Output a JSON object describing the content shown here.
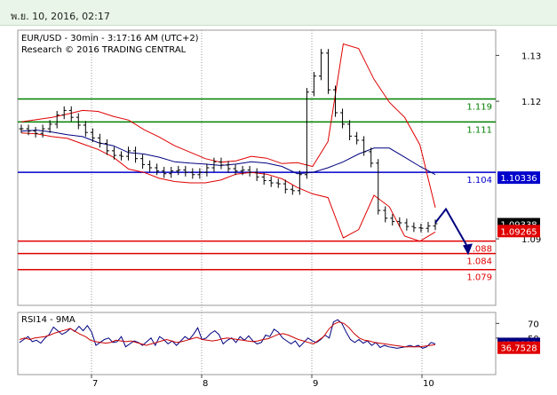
{
  "header": {
    "date": "พ.ย. 10, 2016, 02:17"
  },
  "chart_data": [
    {
      "type": "line",
      "title": "EUR/USD - 30min - 3:17:16 AM (UTC+2)",
      "subtitle": "Research © 2016 TRADING CENTRAL",
      "ylim": [
        1.0755,
        1.1355
      ],
      "y_ticks": [
        "1.13",
        "1.12",
        "1.09"
      ],
      "x_ticks": [
        "7",
        "8",
        "9",
        "10"
      ],
      "levels": [
        {
          "label": "1.119",
          "value": 1.1205,
          "color": "#008000"
        },
        {
          "label": "1.111",
          "value": 1.1155,
          "color": "#008000"
        },
        {
          "label": "1.104",
          "value": 1.1045,
          "color": "#0000cc"
        },
        {
          "label": ".088",
          "value": 1.0895,
          "color": "#e00000"
        },
        {
          "label": "1.084",
          "value": 1.0868,
          "color": "#e00000"
        },
        {
          "label": "1.079",
          "value": 1.0833,
          "color": "#e00000"
        }
      ],
      "price_tags": [
        {
          "label": "1.10336",
          "value": 1.10335,
          "bg": "#0000cc",
          "fg": "#ffffff"
        },
        {
          "label": "1.09338",
          "value": 1.0932,
          "bg": "#000000",
          "fg": "#ffffff"
        },
        {
          "label": "1.09265",
          "value": 1.0917,
          "bg": "#e00000",
          "fg": "#ffffff"
        }
      ],
      "series": [
        {
          "style": "ohlc bars",
          "color": "#000000",
          "values": [
            1.114,
            1.1135,
            1.113,
            1.114,
            1.115,
            1.117,
            1.118,
            1.1165,
            1.1148,
            1.1132,
            1.112,
            1.1108,
            1.1092,
            1.1082,
            1.108,
            1.1092,
            1.1075,
            1.1062,
            1.1055,
            1.1048,
            1.1042,
            1.1048,
            1.105,
            1.1045,
            1.104,
            1.1045,
            1.1055,
            1.1068,
            1.1061,
            1.1053,
            1.1048,
            1.105,
            1.1045,
            1.1035,
            1.1027,
            1.1022,
            1.102,
            1.1008,
            1.1005,
            1.104,
            1.122,
            1.1255,
            1.1305,
            1.1225,
            1.1175,
            1.115,
            1.1124,
            1.1115,
            1.109,
            1.1065,
            1.0962,
            1.0945,
            1.0938,
            1.0935,
            1.0927,
            1.0924,
            1.0923,
            1.0928,
            1.0933
          ]
        },
        {
          "name": "",
          "style": "line",
          "color": "#000080",
          "values": [
            1.1135,
            1.1137,
            1.1133,
            1.1127,
            1.1123,
            1.111,
            1.1103,
            1.1088,
            1.1085,
            1.1078,
            1.1068,
            1.1065,
            1.1063,
            1.106,
            1.1063,
            1.1068,
            1.1065,
            1.1058,
            1.1042,
            1.1045,
            1.1055,
            1.1068,
            1.1085,
            1.1098,
            1.1098,
            1.1078,
            1.1058,
            1.104
          ]
        }
      ],
      "band_upper": [
        1.1155,
        1.116,
        1.1165,
        1.1172,
        1.118,
        1.1178,
        1.1167,
        1.1159,
        1.1138,
        1.1122,
        1.1103,
        1.1089,
        1.1075,
        1.1067,
        1.107,
        1.108,
        1.1076,
        1.1064,
        1.1066,
        1.1058,
        1.1112,
        1.1325,
        1.1315,
        1.1248,
        1.1198,
        1.1165,
        1.1105,
        1.0968
      ],
      "band_lower": [
        1.1131,
        1.1129,
        1.1123,
        1.1119,
        1.1107,
        1.1095,
        1.1078,
        1.1052,
        1.1045,
        1.1032,
        1.1025,
        1.1022,
        1.1022,
        1.1028,
        1.1041,
        1.1045,
        1.1041,
        1.1031,
        1.1012,
        1.0998,
        1.099,
        1.0902,
        1.092,
        1.0995,
        1.097,
        1.0906,
        1.0895,
        1.0915
      ],
      "forecast": [
        1.0935,
        1.0965,
        1.088
      ]
    },
    {
      "type": "line",
      "title": "RSI14 - 9MA",
      "ylim": [
        0,
        85
      ],
      "y_ticks": [
        "70",
        "50"
      ],
      "value_tags": [
        {
          "label": "41.9911",
          "value": 42,
          "bg": "#000080",
          "fg": "#ffffff"
        },
        {
          "label": "36.7528",
          "value": 36.75,
          "bg": "#e00000",
          "fg": "#ffffff"
        }
      ],
      "series": [
        {
          "name": "",
          "color": "#000080",
          "values": [
            44,
            48,
            52,
            45,
            47,
            43,
            50,
            55,
            65,
            60,
            55,
            58,
            63,
            59,
            66,
            60,
            67,
            58,
            40,
            44,
            48,
            50,
            44,
            45,
            52,
            38,
            42,
            46,
            44,
            40,
            45,
            50,
            40,
            52,
            48,
            42,
            46,
            40,
            46,
            52,
            48,
            55,
            64,
            48,
            50,
            56,
            60,
            55,
            42,
            47,
            50,
            44,
            52,
            47,
            53,
            46,
            42,
            44,
            54,
            52,
            62,
            58,
            50,
            46,
            42,
            46,
            38,
            44,
            50,
            46,
            44,
            48,
            54,
            50,
            72,
            75,
            70,
            58,
            48,
            44,
            48,
            43,
            46,
            40,
            44,
            37,
            40,
            38,
            37,
            36,
            37,
            38,
            40,
            38,
            40,
            36,
            38,
            44,
            42
          ]
        },
        {
          "name": "",
          "color": "#cc0000",
          "values": [
            48,
            50,
            48,
            50,
            51,
            52,
            54,
            57,
            59,
            61,
            63,
            59,
            55,
            52,
            47,
            45,
            44,
            43,
            44,
            47,
            46,
            45,
            46,
            44,
            42,
            40,
            42,
            44,
            46,
            48,
            46,
            44,
            45,
            47,
            49,
            51,
            48,
            47,
            46,
            47,
            49,
            50,
            49,
            48,
            47,
            46,
            45,
            46,
            48,
            49,
            52,
            55,
            56,
            54,
            51,
            48,
            46,
            44,
            42,
            47,
            52,
            62,
            69,
            72,
            70,
            64,
            56,
            50,
            47,
            46,
            44,
            43,
            42,
            41,
            40,
            39,
            38,
            38,
            38,
            38,
            39,
            40,
            41
          ]
        }
      ]
    }
  ]
}
